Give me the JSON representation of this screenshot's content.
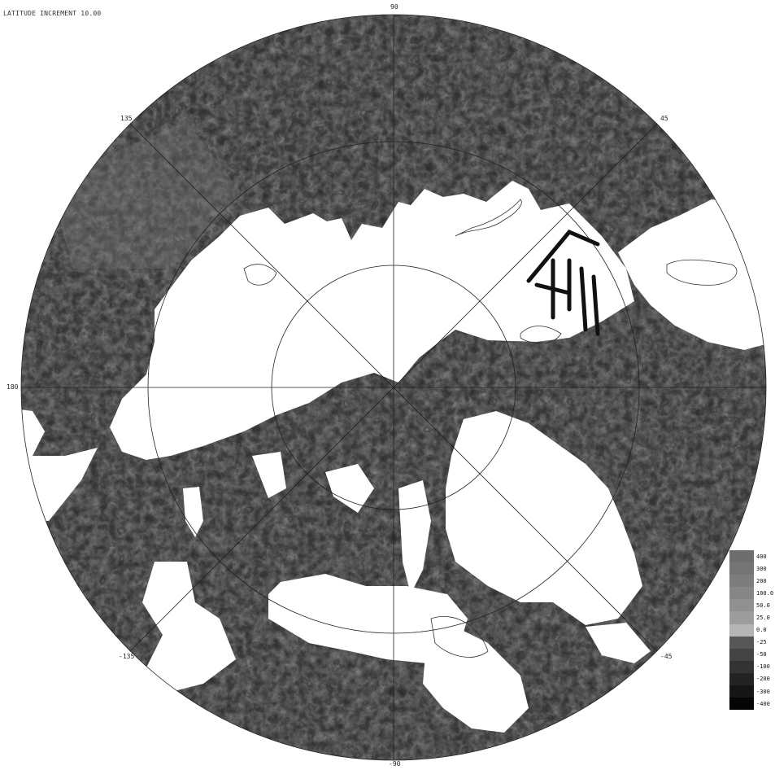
{
  "header": {
    "line2": "LATITUDE INCREMENT 10.00"
  },
  "longitude_labels": {
    "top": "90",
    "upper_left": "135",
    "upper_right": "45",
    "left": "180",
    "lower_left": "-135",
    "lower_right": "-45",
    "bottom": "-90"
  },
  "legend": {
    "items": [
      {
        "label": "400",
        "color": "#6e6e6e"
      },
      {
        "label": "300",
        "color": "#757575"
      },
      {
        "label": "200",
        "color": "#7d7d7d"
      },
      {
        "label": "100.0",
        "color": "#868686"
      },
      {
        "label": "50.0",
        "color": "#909090"
      },
      {
        "label": "25.0",
        "color": "#9c9c9c"
      },
      {
        "label": "0.0",
        "color": "#b5b5b5"
      },
      {
        "label": "-25",
        "color": "#575757"
      },
      {
        "label": "-50",
        "color": "#444444"
      },
      {
        "label": "-100",
        "color": "#333333"
      },
      {
        "label": "-200",
        "color": "#232323"
      },
      {
        "label": "-300",
        "color": "#161616"
      },
      {
        "label": "-400",
        "color": "#050505"
      }
    ]
  },
  "colors": {
    "land": "#2a2a2a",
    "gap": "#ffffff",
    "grid": "#333333"
  }
}
